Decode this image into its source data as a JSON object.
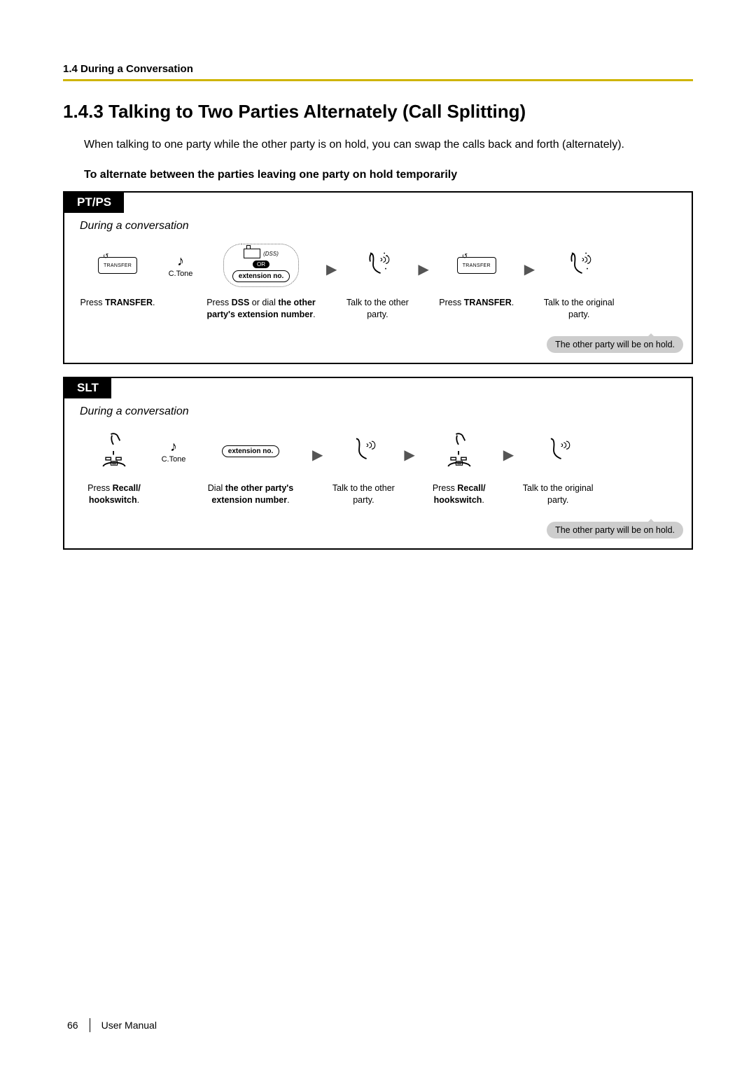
{
  "header": {
    "section": "1.4 During a Conversation"
  },
  "title": "1.4.3   Talking to Two Parties Alternately (Call Splitting)",
  "intro": "When talking to one party while the other party is on hold, you can swap the calls back and forth (alternately).",
  "subheading": "To alternate between the parties leaving one party on hold temporarily",
  "ptps": {
    "tab": "PT/PS",
    "during": "During a conversation",
    "transfer_label": "TRANSFER",
    "dss": "(DSS)",
    "or": "OR",
    "ext": "extension no.",
    "ctone": "C.Tone",
    "step1": "Press <b>TRANSFER</b>.",
    "step2": "Press <b>DSS</b> or dial <b>the other party's extension number</b>.",
    "step3": "Talk to the other party.",
    "step4": "Press <b>TRANSFER</b>.",
    "step5": "Talk to the original party.",
    "note": "The other party will be on hold."
  },
  "slt": {
    "tab": "SLT",
    "during": "During a conversation",
    "ext": "extension no.",
    "ctone": "C.Tone",
    "step1": "Press <b>Recall/ hookswitch</b>.",
    "step2": "Dial <b>the other party's extension number</b>.",
    "step3": "Talk to the other party.",
    "step4": "Press <b>Recall/ hookswitch</b>.",
    "step5": "Talk to the original party.",
    "note": "The other party will be on hold."
  },
  "footer": {
    "page": "66",
    "manual": "User Manual"
  },
  "colors": {
    "rule": "#cfb400",
    "bubble": "#cdcdcd"
  }
}
